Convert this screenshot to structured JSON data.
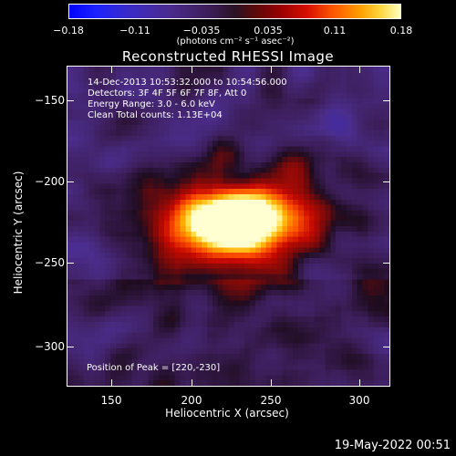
{
  "colorbar": {
    "ticks": [
      "−0.18",
      "−0.11",
      "−0.035",
      "0.035",
      "0.11",
      "0.18"
    ],
    "units": "(photons cm⁻² s⁻¹ asec⁻²)"
  },
  "plot": {
    "title": "Reconstructed RHESSI Image",
    "info_lines": [
      "14-Dec-2013 10:53:32.000 to 10:54:56.000",
      "Detectors: 3F 4F 5F 6F 7F 8F, Att 0",
      "Energy Range: 3.0 - 6.0 keV",
      "Clean     Total counts: 1.13E+04"
    ],
    "peak_label": "Position of Peak = [220,-230]",
    "x_axis": {
      "label": "Heliocentric X (arcsec)",
      "ticks": [
        "150",
        "200",
        "250",
        "300"
      ],
      "range": [
        125,
        318
      ]
    },
    "y_axis": {
      "label": "Heliocentric Y (arcsec)",
      "ticks": [
        "−150",
        "−200",
        "−250",
        "−300"
      ],
      "range": [
        -324,
        -130
      ]
    }
  },
  "footer": {
    "timestamp": "19-May-2022 00:51"
  },
  "colors": {
    "background": "#000000",
    "text": "#ffffff",
    "peak": "#ffffd0",
    "background_emission": "#3a1d60"
  }
}
